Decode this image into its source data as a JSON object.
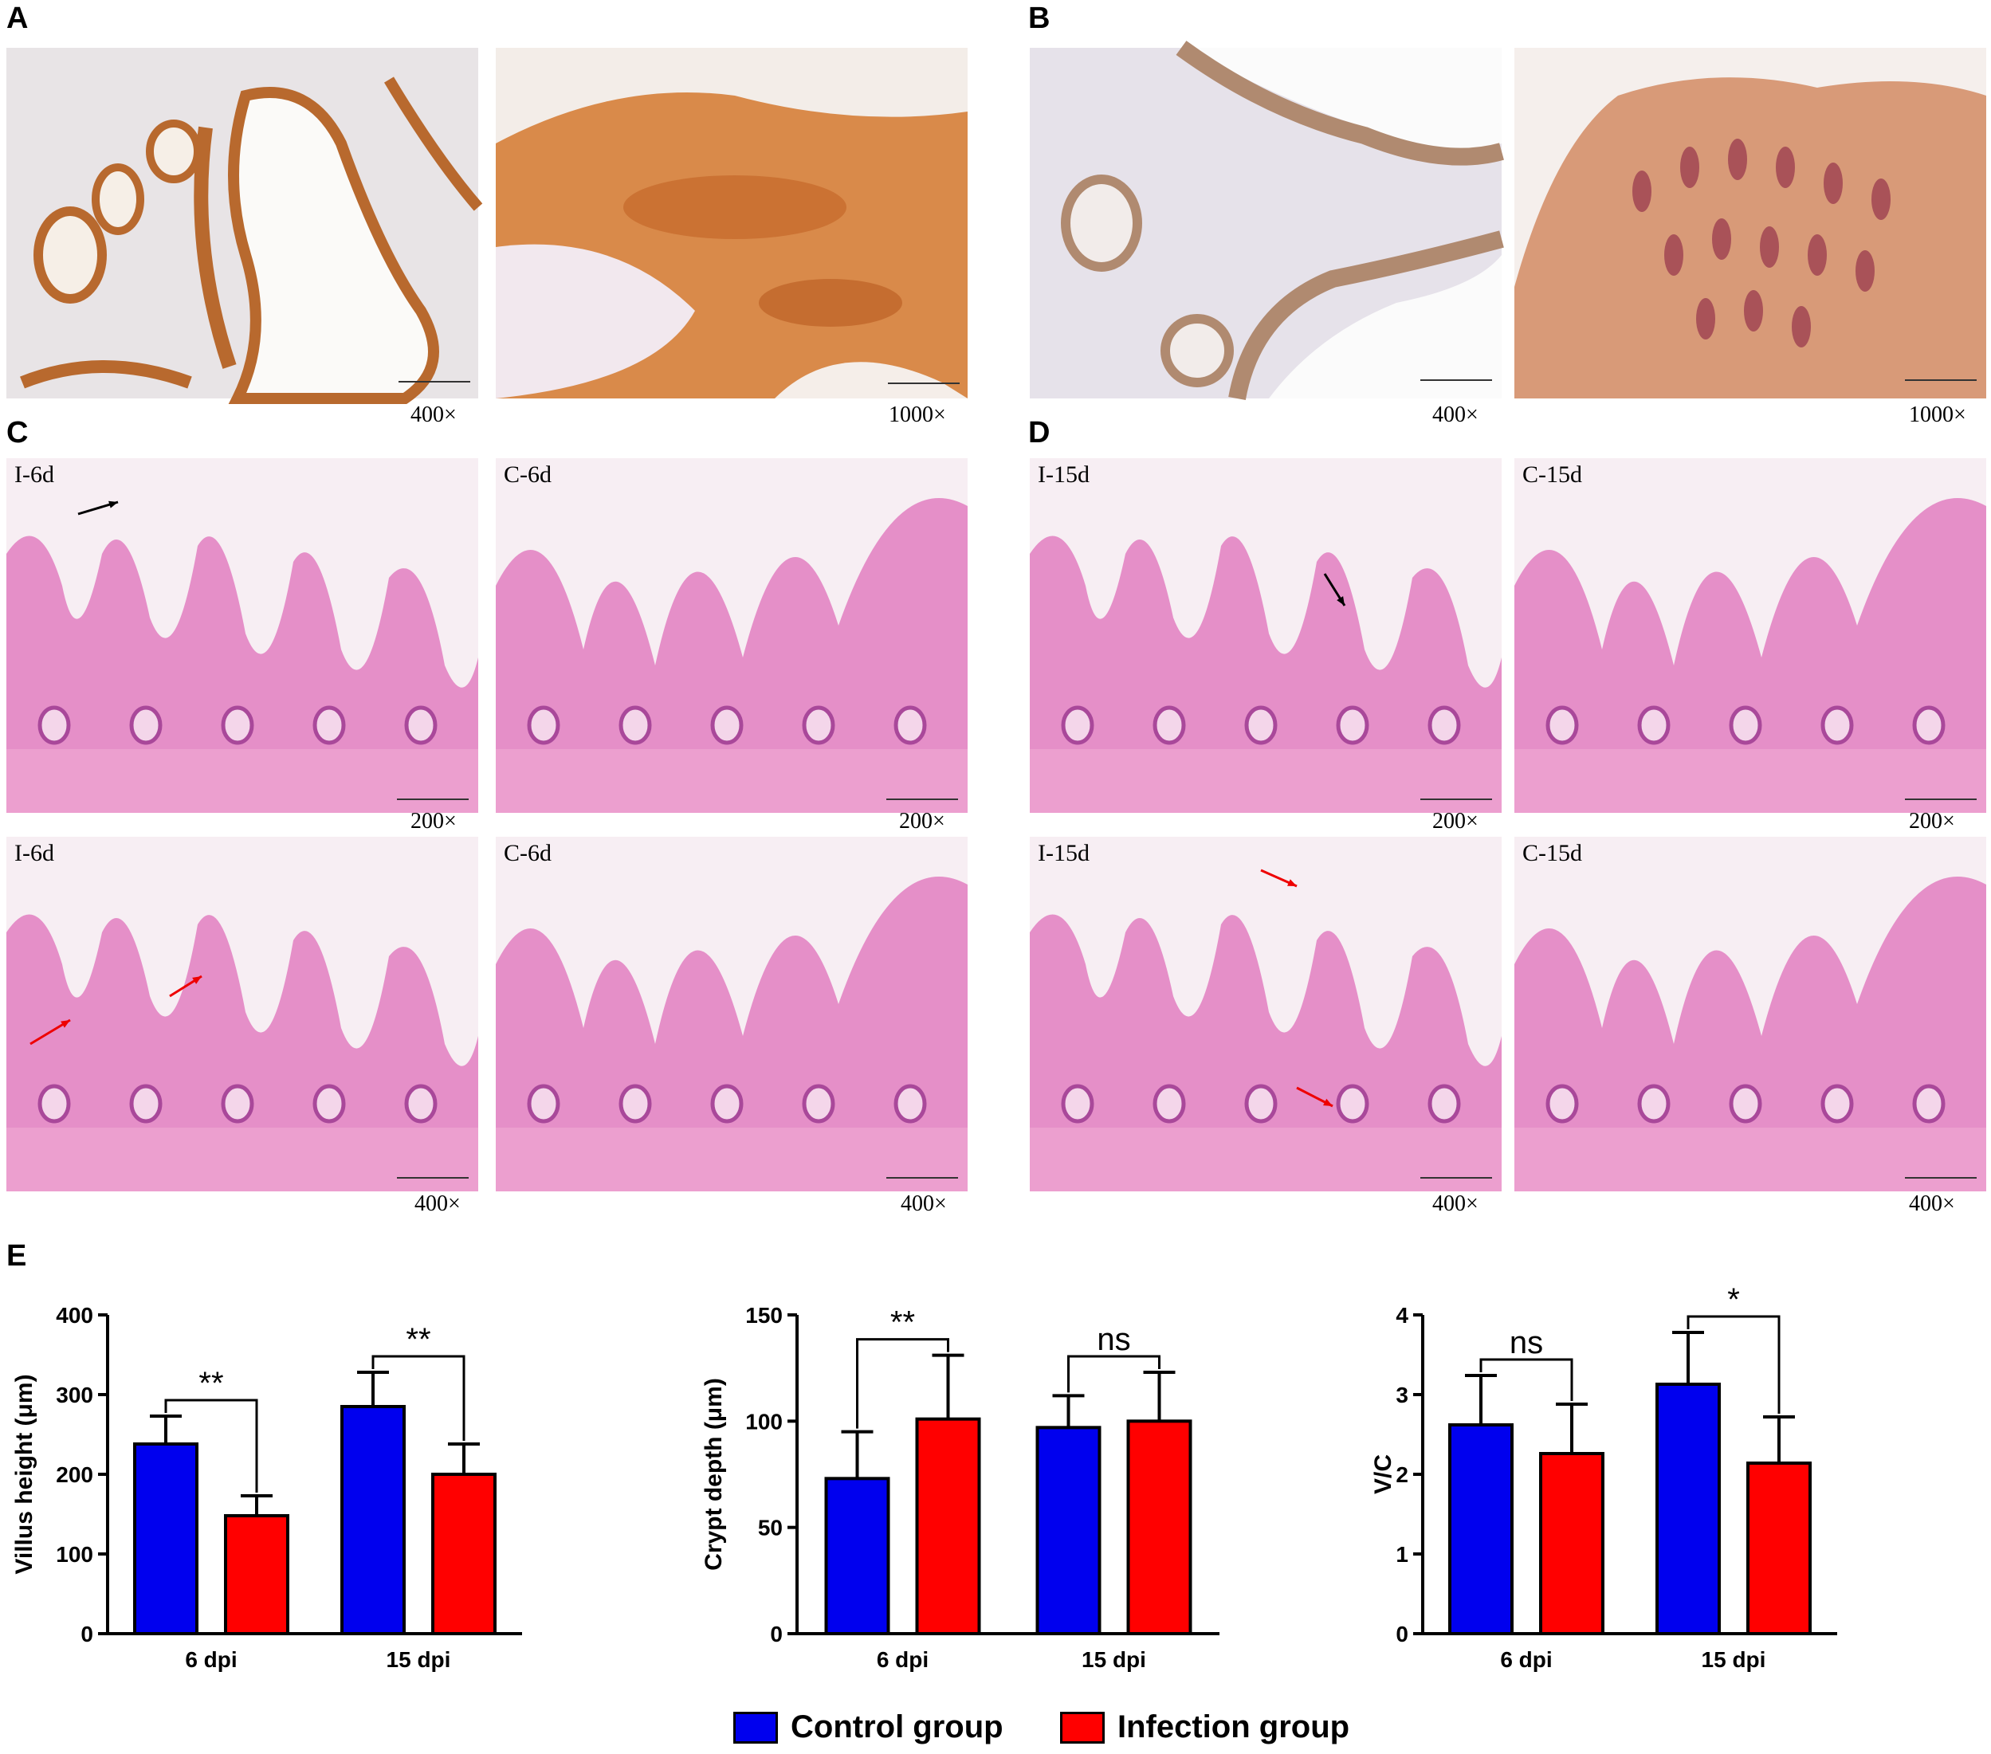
{
  "panels": {
    "A": {
      "letter": "A",
      "mag_left": "400×",
      "mag_right": "1000×"
    },
    "B": {
      "letter": "B",
      "mag_left": "400×",
      "mag_right": "1000×"
    },
    "C": {
      "letter": "C",
      "tl": "I-6d",
      "tr": "C-6d",
      "bl": "I-6d",
      "br": "C-6d",
      "mag_top": "200×",
      "mag_bottom": "400×"
    },
    "D": {
      "letter": "D",
      "tl": "I-15d",
      "tr": "C-15d",
      "bl": "I-15d",
      "br": "C-15d",
      "mag_top": "200×",
      "mag_bottom": "400×"
    },
    "E": {
      "letter": "E"
    }
  },
  "colors": {
    "control": "#0000ee",
    "infection": "#ff0000",
    "ihc_stain": "#b8692e",
    "he_stain": "#e58fc8"
  },
  "legend": {
    "control_label": "Control group",
    "infection_label": "Infection group"
  },
  "chart_data": [
    {
      "type": "bar",
      "ylabel": "Villus height (μm)",
      "categories": [
        "6 dpi",
        "15 dpi"
      ],
      "ylim": [
        0,
        400
      ],
      "yticks": [
        "0",
        "100",
        "200",
        "300",
        "400"
      ],
      "series": [
        {
          "name": "Control group",
          "values": [
            238,
            285
          ],
          "errors": [
            35,
            43
          ]
        },
        {
          "name": "Infection group",
          "values": [
            148,
            200
          ],
          "errors": [
            25,
            38
          ]
        }
      ],
      "significance": [
        "**",
        "**"
      ]
    },
    {
      "type": "bar",
      "ylabel": "Crypt depth (μm)",
      "categories": [
        "6 dpi",
        "15 dpi"
      ],
      "ylim": [
        0,
        150
      ],
      "yticks": [
        "0",
        "50",
        "100",
        "150"
      ],
      "series": [
        {
          "name": "Control group",
          "values": [
            73,
            97
          ],
          "errors": [
            22,
            15
          ]
        },
        {
          "name": "Infection group",
          "values": [
            101,
            100
          ],
          "errors": [
            30,
            23
          ]
        }
      ],
      "significance": [
        "**",
        "ns"
      ]
    },
    {
      "type": "bar",
      "ylabel": "V/C",
      "categories": [
        "6 dpi",
        "15 dpi"
      ],
      "ylim": [
        0,
        4
      ],
      "yticks": [
        "0",
        "1",
        "2",
        "3",
        "4"
      ],
      "series": [
        {
          "name": "Control group",
          "values": [
            2.62,
            3.13
          ],
          "errors": [
            0.62,
            0.65
          ]
        },
        {
          "name": "Infection group",
          "values": [
            2.26,
            2.14
          ],
          "errors": [
            0.62,
            0.58
          ]
        }
      ],
      "significance": [
        "ns",
        "*"
      ]
    }
  ]
}
